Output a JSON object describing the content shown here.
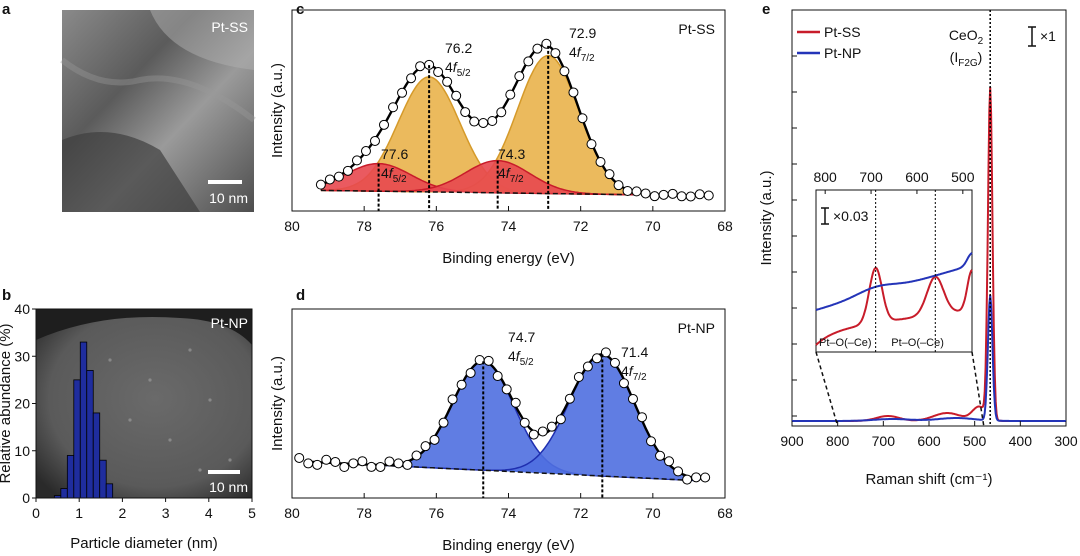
{
  "panels": {
    "a": {
      "label": "a",
      "image_label": "Pt-SS",
      "scale": "10 nm"
    },
    "b": {
      "label": "b",
      "image_label": "Pt-NP",
      "scale": "10 nm"
    },
    "c": {
      "label": "c"
    },
    "d": {
      "label": "d"
    },
    "e": {
      "label": "e"
    }
  },
  "colors": {
    "gold": "#e9b34b",
    "red": "#e8484f",
    "blue": "#4f6fe0",
    "navy": "#1f2d9e",
    "raman_red": "#c81c2a",
    "raman_blue": "#2434b8"
  },
  "chart_data": [
    {
      "id": "b",
      "type": "bar",
      "title": "",
      "xlabel": "Particle diameter (nm)",
      "ylabel": "Relative abundance (%)",
      "xlim": [
        0,
        5
      ],
      "ylim": [
        0,
        40
      ],
      "xticks": [
        0,
        1,
        2,
        3,
        4,
        5
      ],
      "yticks": [
        0,
        10,
        20,
        30,
        40
      ],
      "bin_centers": [
        0.5,
        0.65,
        0.8,
        0.95,
        1.1,
        1.25,
        1.4,
        1.55,
        1.7
      ],
      "bin_width": 0.15,
      "values": [
        0.5,
        2,
        9,
        25,
        33,
        27,
        18,
        8,
        3
      ]
    },
    {
      "id": "c",
      "type": "line",
      "title": "Pt-SS",
      "xlabel": "Binding energy (eV)",
      "ylabel": "Intensity (a.u.)",
      "xlim": [
        80,
        68
      ],
      "xticks": [
        80,
        78,
        76,
        74,
        72,
        70,
        68
      ],
      "peaks": [
        {
          "center": 76.2,
          "height": 1.0,
          "sigma": 0.85,
          "label": "76.2",
          "orbital": "4f",
          "sub": "5/2",
          "fill": "gold"
        },
        {
          "center": 72.9,
          "height": 1.2,
          "sigma": 0.85,
          "label": "72.9",
          "orbital": "4f",
          "sub": "7/2",
          "fill": "gold"
        },
        {
          "center": 77.6,
          "height": 0.24,
          "sigma": 0.9,
          "label": "77.6",
          "orbital": "4f",
          "sub": "5/2",
          "fill": "red"
        },
        {
          "center": 74.3,
          "height": 0.28,
          "sigma": 0.9,
          "label": "74.3",
          "orbital": "4f",
          "sub": "7/2",
          "fill": "red"
        }
      ]
    },
    {
      "id": "d",
      "type": "line",
      "title": "Pt-NP",
      "xlabel": "Binding energy (eV)",
      "ylabel": "Intensity (a.u.)",
      "xlim": [
        80,
        68
      ],
      "xticks": [
        80,
        78,
        76,
        74,
        72,
        70,
        68
      ],
      "peaks": [
        {
          "center": 74.7,
          "height": 0.85,
          "sigma": 0.85,
          "label": "74.7",
          "orbital": "4f",
          "sub": "5/2",
          "fill": "blue"
        },
        {
          "center": 71.4,
          "height": 0.95,
          "sigma": 0.9,
          "label": "71.4",
          "orbital": "4f",
          "sub": "7/2",
          "fill": "blue"
        }
      ]
    },
    {
      "id": "e",
      "type": "line",
      "title": "",
      "xlabel": "Raman shift (cm⁻¹)",
      "ylabel": "Intensity (a.u.)",
      "xlim": [
        900,
        300
      ],
      "xticks": [
        900,
        800,
        700,
        600,
        500,
        400,
        300
      ],
      "series": [
        {
          "name": "Pt-SS",
          "color": "raman_red",
          "peak": 466,
          "peak_height": 1.0
        },
        {
          "name": "Pt-NP",
          "color": "raman_blue",
          "peak": 466,
          "peak_height": 0.38
        }
      ],
      "annotations": {
        "peak_label": "CeO",
        "peak_sub": "2",
        "mode_label": "(I",
        "mode_sub": "F2G",
        "mode_close": ")",
        "scale_main": "×1"
      },
      "inset": {
        "xlim": [
          820,
          480
        ],
        "xticks": [
          800,
          700,
          600,
          500
        ],
        "scale": "×0.03",
        "bands": [
          {
            "x": 690,
            "label": "Pt–O(–Ce)"
          },
          {
            "x": 560,
            "label": "Pt–O(–Ce)"
          }
        ]
      }
    }
  ]
}
